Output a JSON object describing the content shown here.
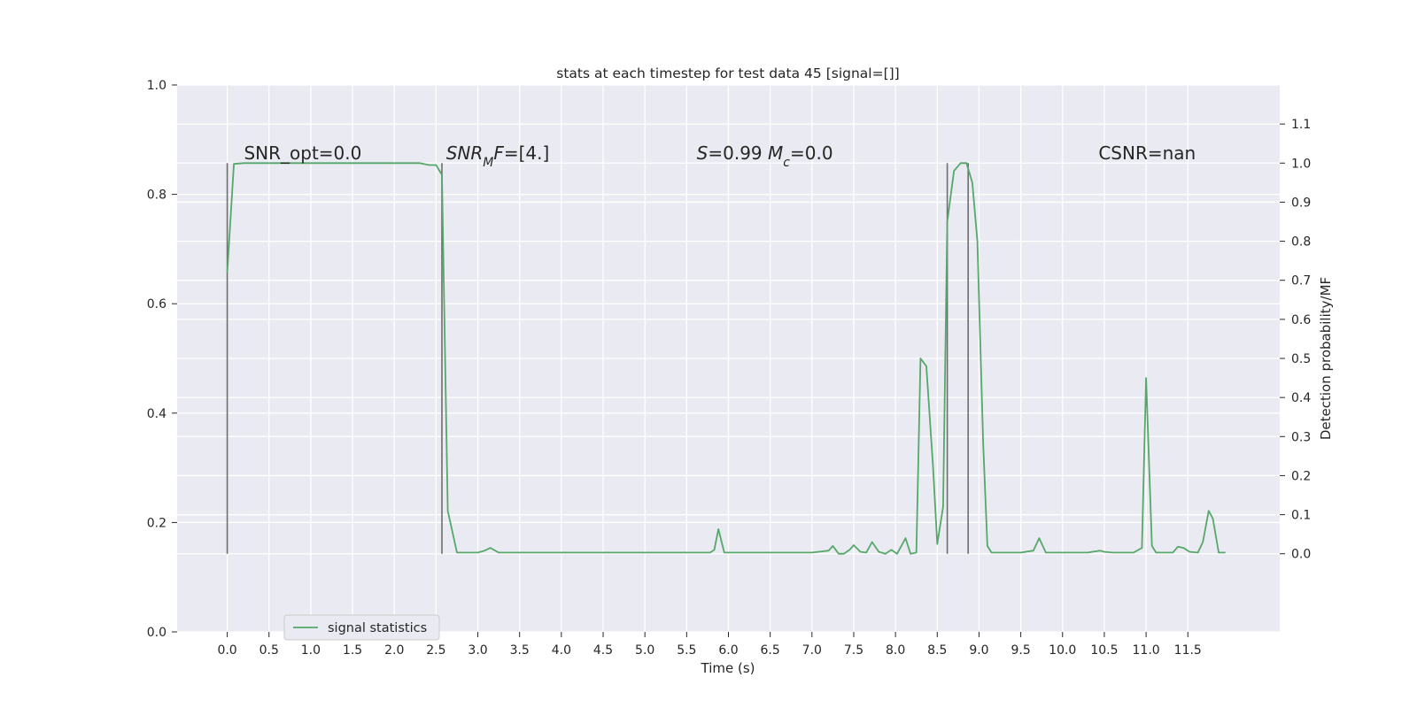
{
  "chart_data": {
    "type": "line",
    "title": "stats at each timestep for test data 45 [signal=[]]",
    "xlabel": "Time (s)",
    "ylabel_left": "",
    "ylabel_right": "Detection probability/MF",
    "xlim": [
      -0.6,
      12.6
    ],
    "ylim_left": [
      0.0,
      1.0
    ],
    "ylim_right": [
      -0.2,
      1.2
    ],
    "x_ticks": [
      0.0,
      0.5,
      1.0,
      1.5,
      2.0,
      2.5,
      3.0,
      3.5,
      4.0,
      4.5,
      5.0,
      5.5,
      6.0,
      6.5,
      7.0,
      7.5,
      8.0,
      8.5,
      9.0,
      9.5,
      10.0,
      10.5,
      11.0,
      11.5
    ],
    "x_tick_labels": [
      "0.0",
      "0.5",
      "1.0",
      "1.5",
      "2.0",
      "2.5",
      "3.0",
      "3.5",
      "4.0",
      "4.5",
      "5.0",
      "5.5",
      "6.0",
      "6.5",
      "7.0",
      "7.5",
      "8.0",
      "8.5",
      "9.0",
      "9.5",
      "10.0",
      "10.5",
      "11.0",
      "11.5"
    ],
    "y_left_ticks": [
      0.0,
      0.2,
      0.4,
      0.6,
      0.8,
      1.0
    ],
    "y_left_tick_labels": [
      "0.0",
      "0.2",
      "0.4",
      "0.6",
      "0.8",
      "1.0"
    ],
    "y_right_ticks": [
      0.0,
      0.1,
      0.2,
      0.3,
      0.4,
      0.5,
      0.6,
      0.7,
      0.8,
      0.9,
      1.0,
      1.1
    ],
    "y_right_tick_labels": [
      "0.0",
      "0.1",
      "0.2",
      "0.3",
      "0.4",
      "0.5",
      "0.6",
      "0.7",
      "0.8",
      "0.9",
      "1.0",
      "1.1"
    ],
    "grid": true,
    "legend_position": "lower-left",
    "series": [
      {
        "name": "signal statistics",
        "axis": "right",
        "color": "#55a868",
        "x": [
          0.0,
          0.08,
          0.2,
          0.5,
          1.0,
          1.5,
          2.0,
          2.3,
          2.42,
          2.5,
          2.57,
          2.64,
          2.75,
          3.0,
          3.08,
          3.15,
          3.25,
          3.5,
          3.8,
          4.5,
          5.0,
          5.5,
          5.78,
          5.83,
          5.88,
          5.95,
          6.05,
          6.5,
          7.0,
          7.2,
          7.25,
          7.32,
          7.38,
          7.45,
          7.5,
          7.58,
          7.65,
          7.72,
          7.8,
          7.88,
          7.95,
          8.02,
          8.12,
          8.18,
          8.25,
          8.3,
          8.37,
          8.45,
          8.5,
          8.57,
          8.62,
          8.7,
          8.78,
          8.85,
          8.92,
          8.98,
          9.05,
          9.1,
          9.15,
          9.3,
          9.5,
          9.65,
          9.72,
          9.8,
          10.0,
          10.3,
          10.45,
          10.5,
          10.6,
          10.7,
          10.85,
          10.95,
          11.0,
          11.07,
          11.12,
          11.2,
          11.32,
          11.38,
          11.45,
          11.52,
          11.62,
          11.68,
          11.75,
          11.8,
          11.87,
          11.95
        ],
        "values": [
          0.72,
          0.998,
          1.0,
          1.0,
          1.0,
          1.0,
          1.0,
          1.0,
          0.995,
          0.995,
          0.97,
          0.11,
          0.003,
          0.003,
          0.008,
          0.015,
          0.003,
          0.003,
          0.003,
          0.003,
          0.003,
          0.003,
          0.003,
          0.01,
          0.063,
          0.003,
          0.003,
          0.003,
          0.003,
          0.008,
          0.02,
          0.0,
          0.0,
          0.01,
          0.022,
          0.005,
          0.003,
          0.03,
          0.005,
          0.0,
          0.01,
          0.0,
          0.04,
          0.0,
          0.003,
          0.5,
          0.48,
          0.22,
          0.025,
          0.12,
          0.85,
          0.98,
          1.0,
          1.0,
          0.95,
          0.8,
          0.28,
          0.02,
          0.003,
          0.003,
          0.003,
          0.008,
          0.04,
          0.003,
          0.003,
          0.003,
          0.008,
          0.005,
          0.003,
          0.003,
          0.003,
          0.015,
          0.45,
          0.02,
          0.003,
          0.003,
          0.003,
          0.018,
          0.015,
          0.005,
          0.003,
          0.03,
          0.11,
          0.09,
          0.003,
          0.003
        ]
      }
    ],
    "vertical_markers": {
      "color": "#6e6e6e",
      "x": [
        0.0,
        2.57,
        8.62,
        8.87
      ],
      "y_range_right": [
        0.0,
        1.0
      ]
    },
    "annotations": [
      {
        "parts": [
          {
            "text": "SNR_opt=0.0",
            "italic": false
          }
        ],
        "x": 0.2,
        "y_right": 1.01
      },
      {
        "parts": [
          {
            "text": "SNR",
            "italic": true
          },
          {
            "text": "M",
            "italic": true,
            "sub": true
          },
          {
            "text": "F",
            "italic": true
          },
          {
            "text": "=[4.]",
            "italic": false
          }
        ],
        "x": 2.62,
        "y_right": 1.01
      },
      {
        "parts": [
          {
            "text": "S",
            "italic": true
          },
          {
            "text": "=0.99   ",
            "italic": false
          },
          {
            "text": "M",
            "italic": true
          },
          {
            "text": "c",
            "italic": true,
            "sub": true
          },
          {
            "text": "=0.0",
            "italic": false
          }
        ],
        "x": 5.62,
        "y_right": 1.01
      },
      {
        "parts": [
          {
            "text": "CSNR=nan",
            "italic": false
          }
        ],
        "x": 10.43,
        "y_right": 1.01
      }
    ]
  },
  "colors": {
    "plot_background": "#eaeaf2",
    "grid": "#ffffff",
    "text": "#262626"
  }
}
